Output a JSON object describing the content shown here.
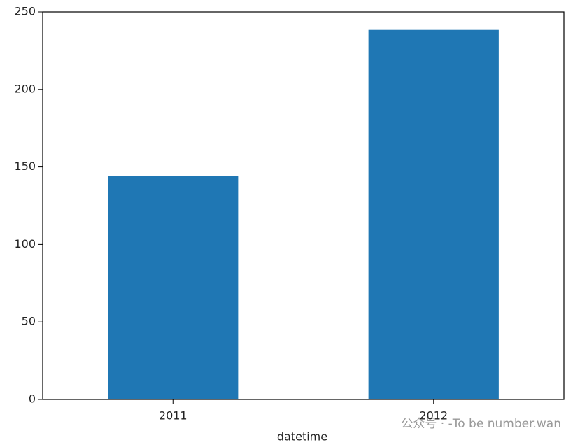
{
  "chart_data": {
    "type": "bar",
    "x_label": "datetime",
    "categories": [
      "2011",
      "2012"
    ],
    "values": [
      144.3,
      238.4
    ],
    "color": "#1f77b4",
    "ylim": [
      0,
      250
    ],
    "yticks": [
      0,
      50,
      100,
      150,
      200,
      250
    ],
    "grid": false
  },
  "watermark": "公众号 · -To be number.wan"
}
